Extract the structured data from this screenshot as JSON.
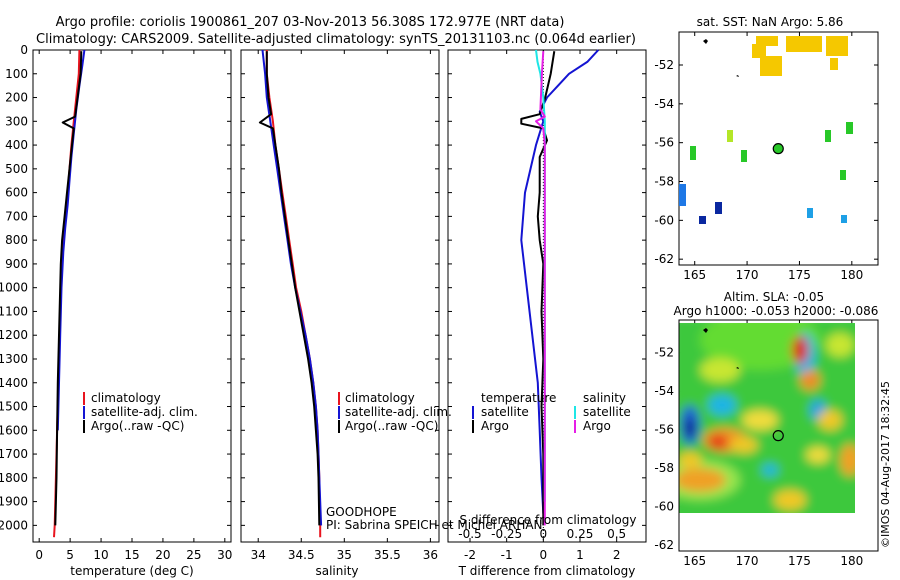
{
  "title_line1": "Argo profile: coriolis 1900861_207 03-Nov-2013 56.308S 172.977E (NRT data)",
  "title_line2": "Climatology: CARS2009. Satellite-adjusted climatology: synTS_20131103.nc (0.064d earlier)",
  "sst_title": "sat. SST: NaN Argo: 5.86",
  "sla_title_line1": "Altim. SLA: -0.05",
  "sla_title_line2": "Argo h1000: -0.053 h2000: -0.086",
  "timestamp": "©IMOS 04-Aug-2017 18:32:45",
  "annotation_goodhope": "GOODHOPE",
  "annotation_pi": "PI: Sabrina SPEICH et Michel ARHAN",
  "colors": {
    "climatology": "#e8141e",
    "satellite": "#1414d2",
    "argo": "#000000",
    "sat_salinity": "#1ee6e6",
    "argo_salinity": "#e61ee6"
  },
  "chart_data": [
    {
      "type": "line",
      "panel": "temperature",
      "xlabel": "temperature (deg C)",
      "xlim": [
        -1,
        31
      ],
      "xticks": [
        0,
        5,
        10,
        15,
        20,
        25,
        30
      ],
      "ylim": [
        2070,
        0
      ],
      "yticks": [
        0,
        100,
        200,
        300,
        400,
        500,
        600,
        700,
        800,
        900,
        1000,
        1100,
        1200,
        1300,
        1400,
        1500,
        1600,
        1700,
        1800,
        1900,
        2000
      ],
      "legend": [
        "climatology",
        "satellite-adj. clim.",
        "Argo(..raw -QC)"
      ],
      "series": [
        {
          "name": "climatology",
          "color_key": "climatology",
          "points": [
            [
              6.5,
              0
            ],
            [
              6.4,
              100
            ],
            [
              6.0,
              200
            ],
            [
              5.6,
              300
            ],
            [
              5.2,
              400
            ],
            [
              4.9,
              500
            ],
            [
              4.6,
              600
            ],
            [
              4.2,
              700
            ],
            [
              3.9,
              800
            ],
            [
              3.7,
              900
            ],
            [
              3.5,
              1000
            ],
            [
              3.3,
              1200
            ],
            [
              3.1,
              1400
            ],
            [
              2.9,
              1600
            ],
            [
              2.7,
              1800
            ],
            [
              2.5,
              2000
            ],
            [
              2.4,
              2050
            ]
          ]
        },
        {
          "name": "satellite-adj. clim.",
          "color_key": "satellite",
          "points": [
            [
              7.3,
              0
            ],
            [
              7.0,
              60
            ],
            [
              6.5,
              150
            ],
            [
              6.0,
              250
            ],
            [
              5.6,
              350
            ],
            [
              5.2,
              450
            ],
            [
              4.9,
              550
            ],
            [
              4.6,
              650
            ],
            [
              4.2,
              750
            ],
            [
              3.9,
              850
            ],
            [
              3.6,
              1000
            ],
            [
              3.4,
              1200
            ],
            [
              3.2,
              1400
            ],
            [
              3.0,
              1600
            ]
          ]
        },
        {
          "name": "Argo(..raw -QC)",
          "color_key": "argo",
          "points": [
            [
              6.8,
              5
            ],
            [
              6.7,
              100
            ],
            [
              6.2,
              200
            ],
            [
              5.8,
              280
            ],
            [
              3.8,
              305
            ],
            [
              5.6,
              330
            ],
            [
              5.3,
              400
            ],
            [
              4.9,
              500
            ],
            [
              4.5,
              600
            ],
            [
              4.1,
              700
            ],
            [
              3.7,
              800
            ],
            [
              3.5,
              900
            ],
            [
              3.4,
              1000
            ],
            [
              3.2,
              1200
            ],
            [
              3.0,
              1400
            ],
            [
              2.9,
              1600
            ],
            [
              2.8,
              1800
            ],
            [
              2.6,
              2000
            ]
          ]
        }
      ]
    },
    {
      "type": "line",
      "panel": "salinity",
      "xlabel": "salinity",
      "xlim": [
        33.8,
        36.1
      ],
      "xticks": [
        34,
        34.5,
        35,
        35.5,
        36
      ],
      "ylim": [
        2070,
        0
      ],
      "legend": [
        "climatology",
        "satellite-adj. clim.",
        "Argo(..raw -QC)"
      ],
      "series": [
        {
          "name": "climatology",
          "color_key": "climatology",
          "points": [
            [
              34.1,
              0
            ],
            [
              34.1,
              100
            ],
            [
              34.13,
              200
            ],
            [
              34.17,
              300
            ],
            [
              34.2,
              400
            ],
            [
              34.24,
              500
            ],
            [
              34.28,
              600
            ],
            [
              34.32,
              700
            ],
            [
              34.36,
              800
            ],
            [
              34.4,
              900
            ],
            [
              34.44,
              1000
            ],
            [
              34.5,
              1100
            ],
            [
              34.55,
              1200
            ],
            [
              34.6,
              1300
            ],
            [
              34.64,
              1400
            ],
            [
              34.67,
              1500
            ],
            [
              34.69,
              1600
            ],
            [
              34.7,
              1700
            ],
            [
              34.71,
              1800
            ],
            [
              34.72,
              2000
            ],
            [
              34.72,
              2050
            ]
          ]
        },
        {
          "name": "satellite-adj. clim.",
          "color_key": "satellite",
          "points": [
            [
              34.05,
              0
            ],
            [
              34.08,
              100
            ],
            [
              34.1,
              200
            ],
            [
              34.14,
              300
            ],
            [
              34.18,
              400
            ],
            [
              34.22,
              500
            ],
            [
              34.26,
              600
            ],
            [
              34.3,
              700
            ],
            [
              34.34,
              800
            ],
            [
              34.38,
              900
            ],
            [
              34.43,
              1000
            ],
            [
              34.49,
              1100
            ],
            [
              34.55,
              1200
            ],
            [
              34.6,
              1300
            ],
            [
              34.64,
              1400
            ],
            [
              34.67,
              1500
            ],
            [
              34.69,
              1600
            ],
            [
              34.7,
              1700
            ],
            [
              34.71,
              1800
            ],
            [
              34.72,
              1900
            ],
            [
              34.73,
              2000
            ]
          ]
        },
        {
          "name": "Argo(..raw -QC)",
          "color_key": "argo",
          "points": [
            [
              34.1,
              5
            ],
            [
              34.1,
              100
            ],
            [
              34.12,
              200
            ],
            [
              34.15,
              270
            ],
            [
              34.02,
              305
            ],
            [
              34.17,
              330
            ],
            [
              34.2,
              400
            ],
            [
              34.24,
              500
            ],
            [
              34.27,
              600
            ],
            [
              34.31,
              700
            ],
            [
              34.35,
              800
            ],
            [
              34.39,
              900
            ],
            [
              34.43,
              1000
            ],
            [
              34.48,
              1100
            ],
            [
              34.53,
              1200
            ],
            [
              34.58,
              1300
            ],
            [
              34.62,
              1400
            ],
            [
              34.65,
              1500
            ],
            [
              34.67,
              1600
            ],
            [
              34.69,
              1700
            ],
            [
              34.7,
              1800
            ],
            [
              34.71,
              2000
            ]
          ]
        }
      ]
    },
    {
      "type": "line",
      "panel": "difference",
      "xlabel": "T difference from climatology",
      "top_label": "S difference from climatology",
      "xlim": [
        -2.6,
        2.8
      ],
      "xticks": [
        -2,
        -1,
        0,
        1,
        2
      ],
      "top_ticks": [
        "-0.5",
        "-0.25",
        "0",
        "0.25",
        "0.5"
      ],
      "ylim": [
        2070,
        0
      ],
      "legend": {
        "temperature": "temperature",
        "salinity": "salinity",
        "satellite": "satellite",
        "argo": "Argo"
      },
      "series": [
        {
          "name": "satellite",
          "group": "temperature",
          "color_key": "satellite",
          "points": [
            [
              1.5,
              0
            ],
            [
              1.2,
              50
            ],
            [
              0.7,
              100
            ],
            [
              0.4,
              150
            ],
            [
              0.1,
              200
            ],
            [
              -0.1,
              260
            ],
            [
              0.0,
              300
            ],
            [
              -0.2,
              400
            ],
            [
              -0.5,
              600
            ],
            [
              -0.6,
              800
            ],
            [
              -0.45,
              1000
            ],
            [
              -0.3,
              1200
            ],
            [
              -0.15,
              1400
            ],
            [
              -0.1,
              1600
            ],
            [
              -0.05,
              1800
            ],
            [
              0.0,
              1950
            ]
          ]
        },
        {
          "name": "Argo",
          "group": "temperature",
          "color_key": "argo",
          "points": [
            [
              0.3,
              5
            ],
            [
              0.2,
              100
            ],
            [
              0.05,
              200
            ],
            [
              -0.1,
              270
            ],
            [
              -0.6,
              290
            ],
            [
              -0.6,
              310
            ],
            [
              0.0,
              330
            ],
            [
              0.1,
              380
            ],
            [
              -0.1,
              450
            ],
            [
              -0.1,
              600
            ],
            [
              -0.15,
              700
            ],
            [
              -0.1,
              800
            ],
            [
              0.0,
              900
            ],
            [
              -0.05,
              1100
            ],
            [
              0.0,
              1300
            ],
            [
              -0.05,
              1500
            ],
            [
              0.0,
              1700
            ],
            [
              0.0,
              2000
            ]
          ]
        },
        {
          "name": "satellite",
          "group": "salinity",
          "color_key": "sat_salinity",
          "points": [
            [
              -0.05,
              0
            ],
            [
              -0.04,
              50
            ],
            [
              -0.02,
              100
            ],
            [
              0.0,
              200
            ],
            [
              0.01,
              300
            ],
            [
              0.01,
              400
            ],
            [
              0.01,
              600
            ],
            [
              0.01,
              800
            ],
            [
              0.01,
              1000
            ],
            [
              0.01,
              1300
            ],
            [
              0.01,
              1600
            ],
            [
              0.01,
              1900
            ]
          ]
        },
        {
          "name": "Argo",
          "group": "salinity",
          "color_key": "argo_salinity",
          "points": [
            [
              0.0,
              5
            ],
            [
              -0.01,
              100
            ],
            [
              -0.02,
              250
            ],
            [
              0.01,
              280
            ],
            [
              -0.05,
              300
            ],
            [
              0.0,
              330
            ],
            [
              0.01,
              400
            ],
            [
              0.01,
              600
            ],
            [
              0.01,
              800
            ],
            [
              0.01,
              1000
            ],
            [
              0.01,
              1300
            ],
            [
              0.01,
              1600
            ],
            [
              0.01,
              2000
            ]
          ]
        }
      ]
    },
    {
      "type": "heatmap",
      "panel": "sst-map",
      "title": "sat. SST: NaN Argo: 5.86",
      "xlim": [
        163.5,
        182.5
      ],
      "xticks": [
        165,
        170,
        175,
        180
      ],
      "ylim": [
        -62.3,
        -50.3
      ],
      "yticks": [
        -52,
        -54,
        -56,
        -58,
        -60,
        -62
      ],
      "argo_position": [
        172.977,
        -56.308
      ]
    },
    {
      "type": "heatmap",
      "panel": "sla-map",
      "title": "Altim. SLA: -0.05",
      "subtitle": "Argo h1000: -0.053 h2000: -0.086",
      "xlim": [
        163.5,
        182.5
      ],
      "xticks": [
        165,
        170,
        175,
        180
      ],
      "ylim": [
        -62.3,
        -50.3
      ],
      "yticks": [
        -52,
        -54,
        -56,
        -58,
        -60,
        -62
      ],
      "argo_position": [
        172.977,
        -56.308
      ]
    }
  ]
}
